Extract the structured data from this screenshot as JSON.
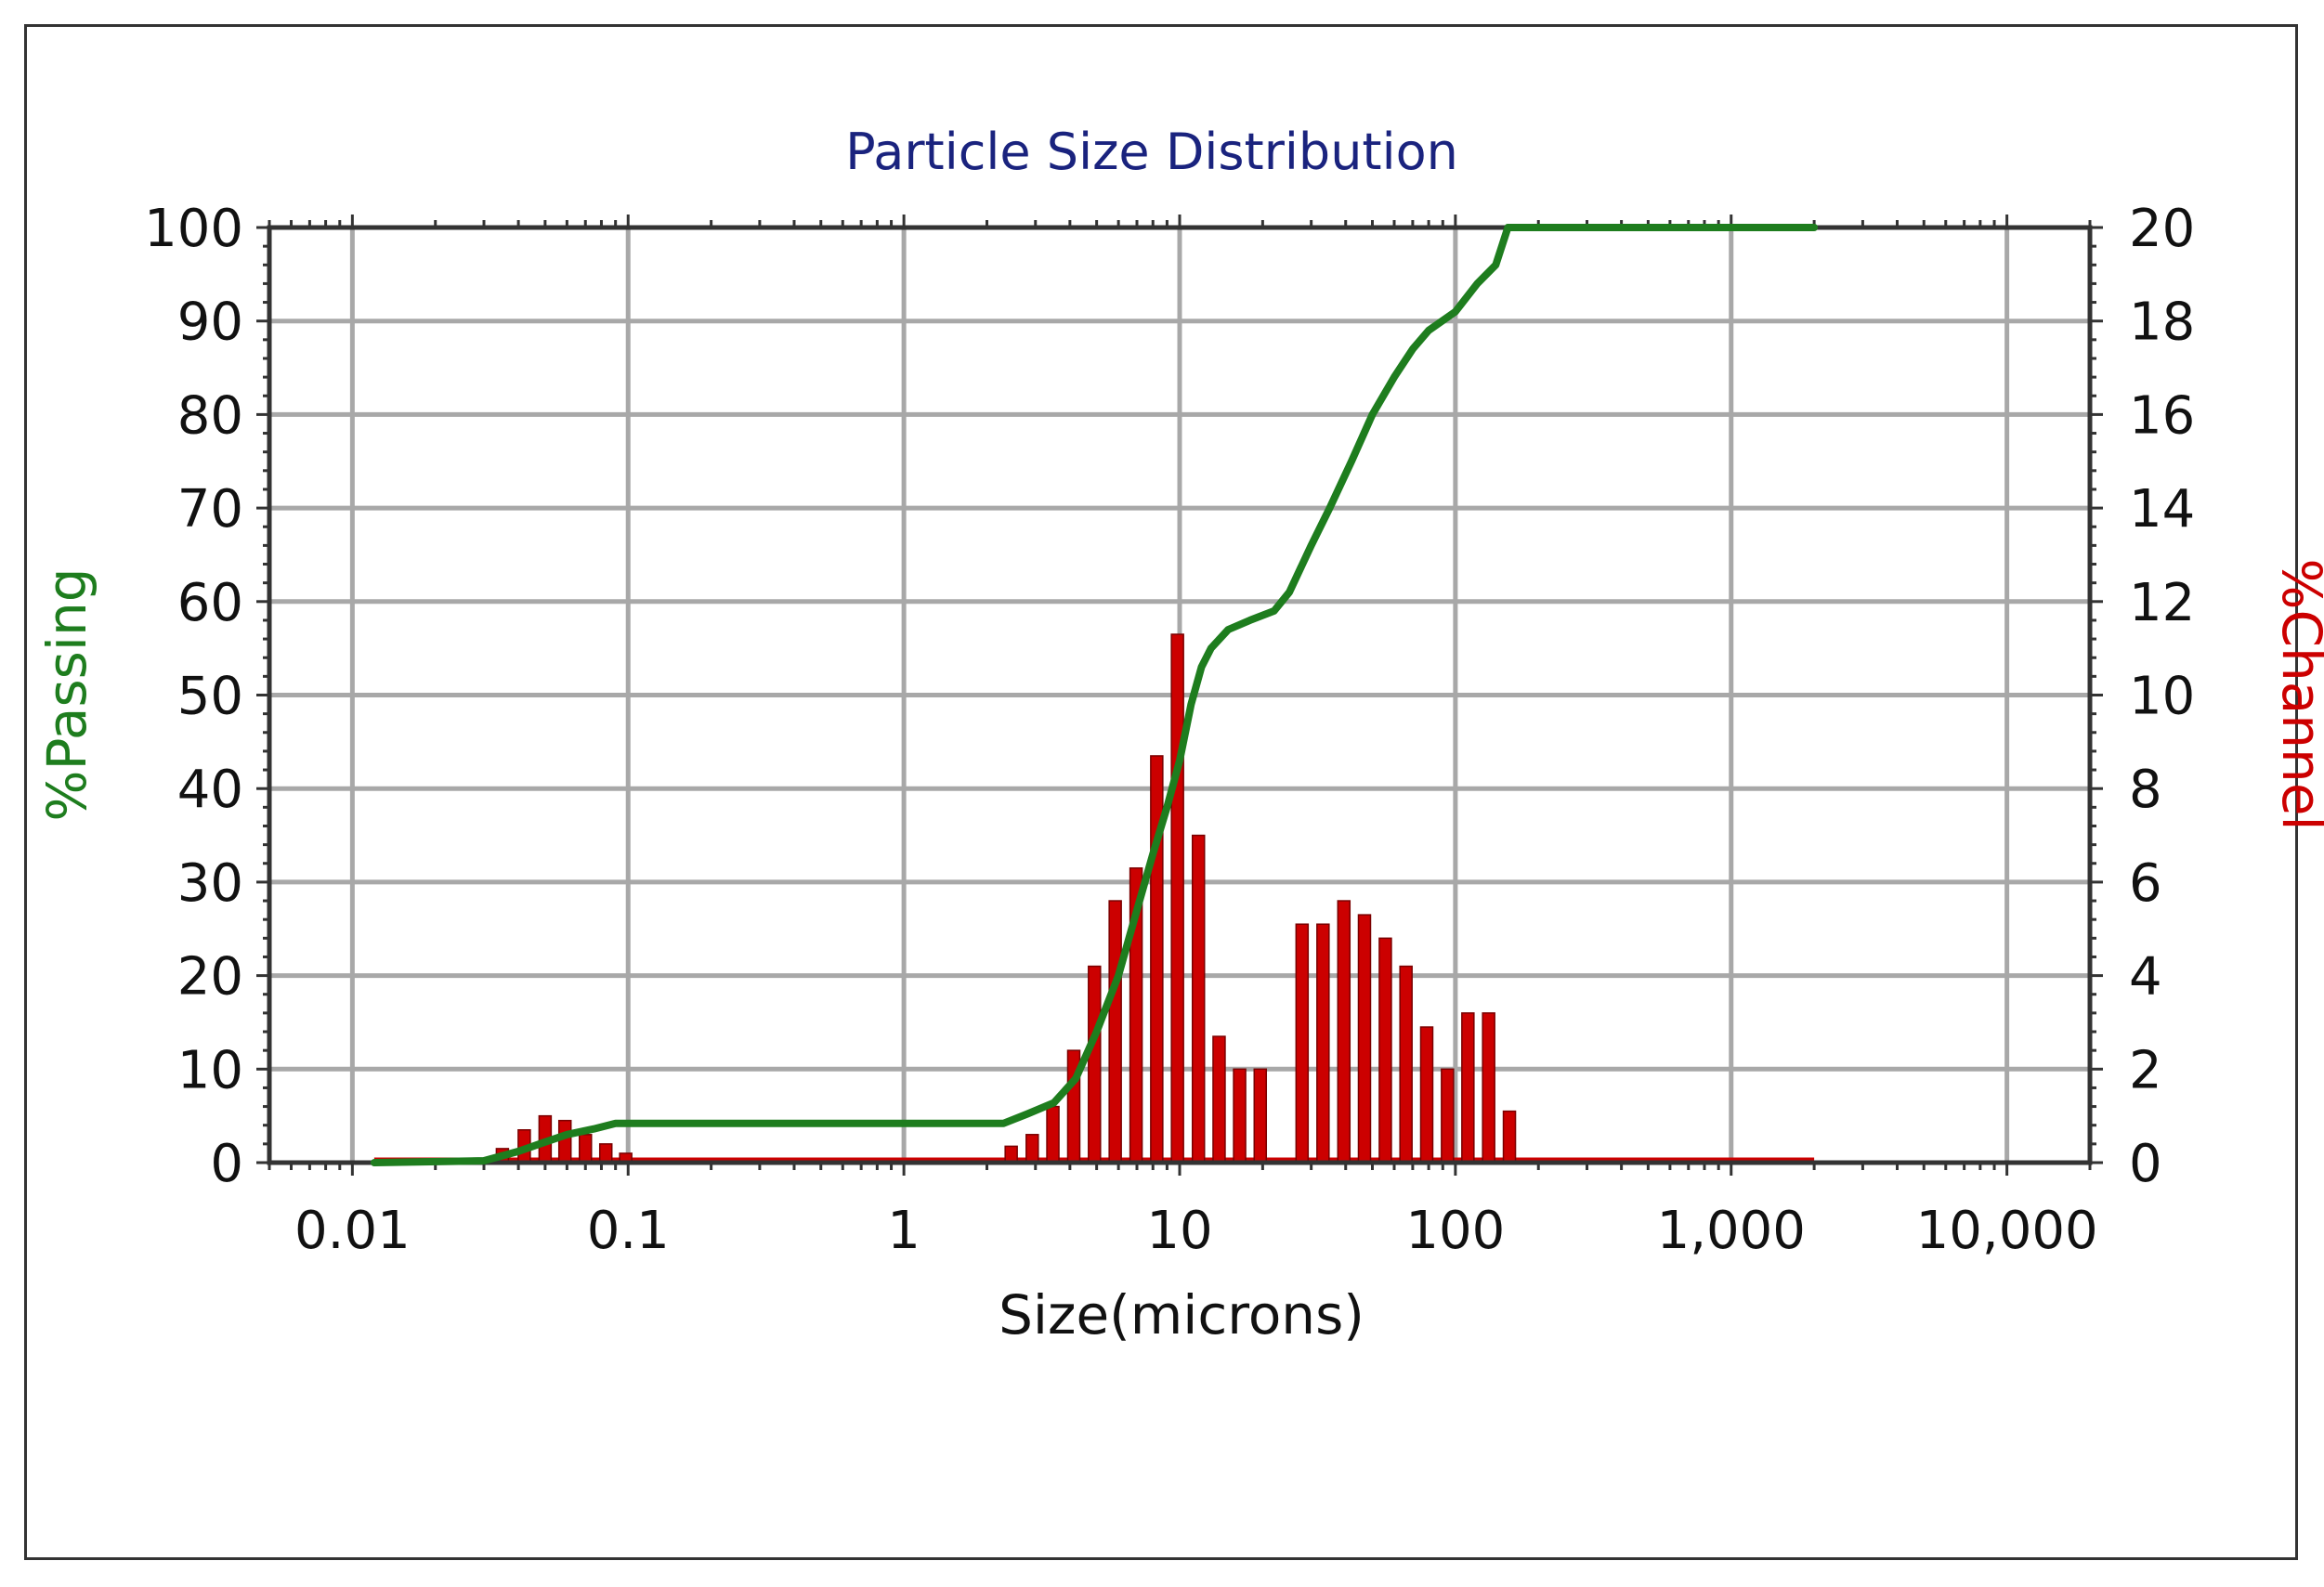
{
  "chart_data": {
    "type": "bar",
    "title": "Particle Size Distribution",
    "xlabel": "Size(microns)",
    "ylabel_left": "%Passing",
    "ylabel_right": "%Channel",
    "x_scale": "log",
    "xlim": [
      0.005,
      20000
    ],
    "ylim_left": [
      0,
      100
    ],
    "ylim_right": [
      0,
      20
    ],
    "grid": true,
    "x_ticks": [
      0.01,
      0.1,
      1,
      10,
      100,
      1000,
      10000
    ],
    "x_tick_labels": [
      "0.01",
      "0.1",
      "1",
      "10",
      "100",
      "1,000",
      "10,000"
    ],
    "y_left_ticks": [
      "0",
      "10",
      "20",
      "30",
      "40",
      "50",
      "60",
      "70",
      "80",
      "90",
      "100"
    ],
    "y_right_ticks": [
      "0",
      "2",
      "4",
      "6",
      "8",
      "10",
      "12",
      "14",
      "16",
      "18",
      "20"
    ],
    "colors": {
      "passing": "#1e7d1e",
      "channel": "#cc0000",
      "channel_border": "#7a0000",
      "grid": "#a8a8a8",
      "axis": "#333333",
      "title": "#1a237e"
    },
    "series": [
      {
        "name": "%Passing",
        "axis": "left",
        "style": "line",
        "points": [
          [
            0.012,
            0
          ],
          [
            0.03,
            0.2
          ],
          [
            0.04,
            1.2
          ],
          [
            0.05,
            2.2
          ],
          [
            0.06,
            3.0
          ],
          [
            0.075,
            3.6
          ],
          [
            0.09,
            4.2
          ],
          [
            0.1,
            4.2
          ],
          [
            0.5,
            4.2
          ],
          [
            1,
            4.2
          ],
          [
            2.3,
            4.2
          ],
          [
            2.8,
            5.2
          ],
          [
            3.5,
            6.4
          ],
          [
            4.2,
            9.0
          ],
          [
            5,
            14
          ],
          [
            6,
            20
          ],
          [
            7,
            27
          ],
          [
            8,
            33
          ],
          [
            9,
            38
          ],
          [
            10,
            43
          ],
          [
            11,
            49
          ],
          [
            12,
            53
          ],
          [
            13,
            55
          ],
          [
            15,
            57
          ],
          [
            18,
            58
          ],
          [
            22,
            59
          ],
          [
            25,
            61
          ],
          [
            30,
            66
          ],
          [
            35,
            70
          ],
          [
            42,
            75
          ],
          [
            50,
            80
          ],
          [
            60,
            84
          ],
          [
            70,
            87
          ],
          [
            80,
            89
          ],
          [
            100,
            91
          ],
          [
            120,
            94
          ],
          [
            140,
            96
          ],
          [
            155,
            100
          ],
          [
            2000,
            100
          ]
        ]
      },
      {
        "name": "%Channel",
        "axis": "right",
        "style": "bar",
        "points": [
          [
            0.035,
            0.3
          ],
          [
            0.042,
            0.7
          ],
          [
            0.05,
            1.0
          ],
          [
            0.059,
            0.9
          ],
          [
            0.07,
            0.6
          ],
          [
            0.083,
            0.4
          ],
          [
            0.098,
            0.2
          ],
          [
            2.45,
            0.35
          ],
          [
            2.92,
            0.6
          ],
          [
            3.47,
            1.2
          ],
          [
            4.13,
            2.4
          ],
          [
            4.91,
            4.2
          ],
          [
            5.84,
            5.6
          ],
          [
            6.95,
            6.3
          ],
          [
            8.26,
            8.7
          ],
          [
            9.82,
            11.3
          ],
          [
            11.7,
            7.0
          ],
          [
            13.9,
            2.7
          ],
          [
            16.5,
            2.0
          ],
          [
            19.6,
            2.0
          ],
          [
            27.8,
            5.1
          ],
          [
            33.1,
            5.1
          ],
          [
            39.4,
            5.6
          ],
          [
            46.8,
            5.3
          ],
          [
            55.7,
            4.8
          ],
          [
            66.2,
            4.2
          ],
          [
            78.7,
            2.9
          ],
          [
            93.6,
            2.0
          ],
          [
            111,
            3.2
          ],
          [
            132,
            3.2
          ],
          [
            157,
            1.1
          ]
        ]
      }
    ]
  }
}
